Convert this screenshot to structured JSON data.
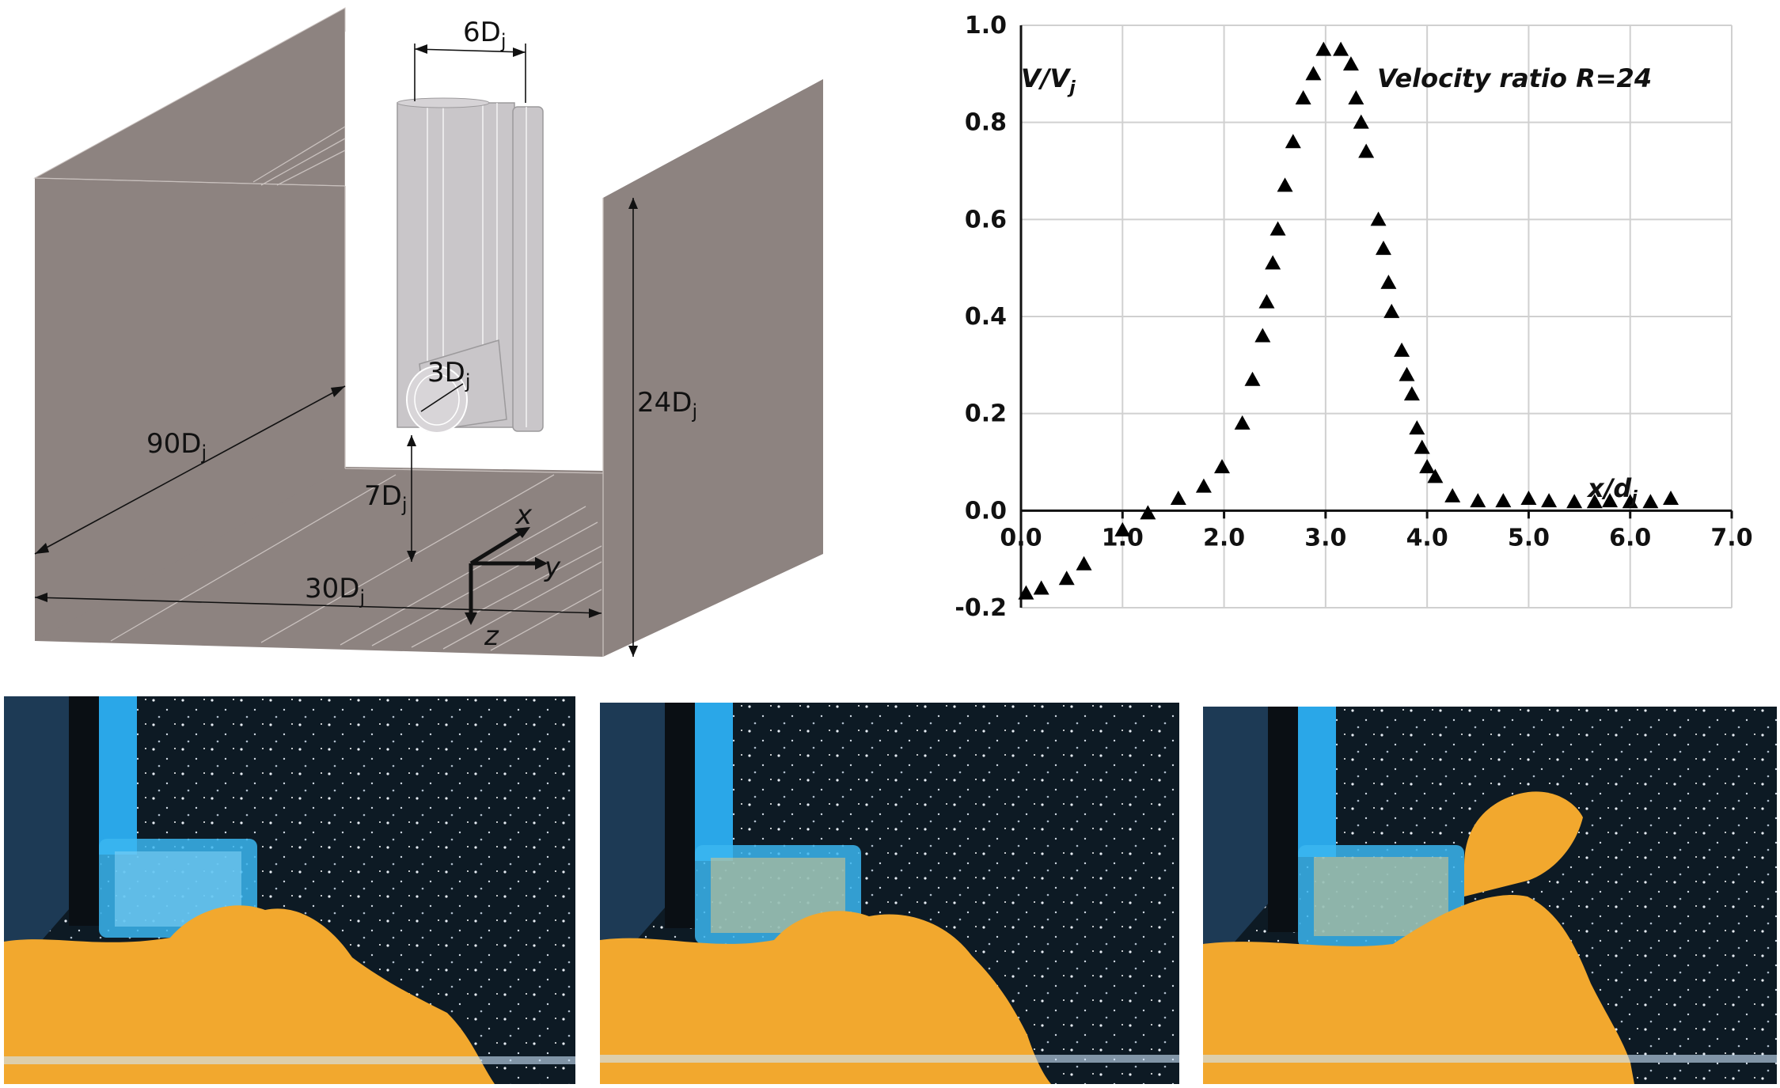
{
  "schematic": {
    "dim_labels": {
      "nozzle_spacing": "6D",
      "nozzle_spacing_sub": "j",
      "nozzle_dia": "3D",
      "nozzle_dia_sub": "j",
      "channel_length": "90D",
      "channel_length_sub": "j",
      "height_above_floor": "7D",
      "height_above_floor_sub": "j",
      "channel_width": "30D",
      "channel_width_sub": "j",
      "channel_depth": "24D",
      "channel_depth_sub": "j"
    },
    "axes_labels": {
      "x": "x",
      "y": "y",
      "z": "z"
    },
    "colors": {
      "wall": "#8d8380",
      "wall_edge": "#c9c1be",
      "nozzle": "#c9c6c9"
    }
  },
  "chart": {
    "ylabel_main": "V/V",
    "ylabel_sub": "j",
    "xlabel_main": "x/d",
    "xlabel_sub": "j",
    "annotation": "Velocity ratio R=24"
  },
  "chart_data": {
    "type": "scatter",
    "xlim": [
      0.0,
      7.0
    ],
    "ylim": [
      -0.2,
      1.0
    ],
    "xticks": [
      "0.0",
      "1.0",
      "2.0",
      "3.0",
      "4.0",
      "5.0",
      "6.0",
      "7.0"
    ],
    "yticks": [
      "-0.2",
      "0.0",
      "0.2",
      "0.4",
      "0.6",
      "0.8",
      "1.0"
    ],
    "grid": true,
    "marker": "triangle",
    "points": [
      [
        0.05,
        -0.17
      ],
      [
        0.2,
        -0.16
      ],
      [
        0.45,
        -0.14
      ],
      [
        0.62,
        -0.11
      ],
      [
        1.0,
        -0.04
      ],
      [
        1.25,
        -0.005
      ],
      [
        1.55,
        0.025
      ],
      [
        1.8,
        0.05
      ],
      [
        1.98,
        0.09
      ],
      [
        2.18,
        0.18
      ],
      [
        2.28,
        0.27
      ],
      [
        2.38,
        0.36
      ],
      [
        2.42,
        0.43
      ],
      [
        2.48,
        0.51
      ],
      [
        2.53,
        0.58
      ],
      [
        2.6,
        0.67
      ],
      [
        2.68,
        0.76
      ],
      [
        2.78,
        0.85
      ],
      [
        2.88,
        0.9
      ],
      [
        2.98,
        0.95
      ],
      [
        3.15,
        0.95
      ],
      [
        3.25,
        0.92
      ],
      [
        3.3,
        0.85
      ],
      [
        3.35,
        0.8
      ],
      [
        3.4,
        0.74
      ],
      [
        3.52,
        0.6
      ],
      [
        3.57,
        0.54
      ],
      [
        3.62,
        0.47
      ],
      [
        3.65,
        0.41
      ],
      [
        3.75,
        0.33
      ],
      [
        3.8,
        0.28
      ],
      [
        3.85,
        0.24
      ],
      [
        3.9,
        0.17
      ],
      [
        3.95,
        0.13
      ],
      [
        4.0,
        0.09
      ],
      [
        4.08,
        0.07
      ],
      [
        4.25,
        0.03
      ],
      [
        4.5,
        0.02
      ],
      [
        4.75,
        0.02
      ],
      [
        5.0,
        0.025
      ],
      [
        5.2,
        0.02
      ],
      [
        5.45,
        0.018
      ],
      [
        5.65,
        0.018
      ],
      [
        5.8,
        0.02
      ],
      [
        6.0,
        0.018
      ],
      [
        6.2,
        0.018
      ],
      [
        6.4,
        0.025
      ]
    ]
  },
  "photos": [
    {
      "colors": {
        "bg": "#0d1a24",
        "nozzle": "#2aa7e8",
        "plume": "#f2a82e"
      }
    },
    {
      "colors": {
        "bg": "#0d1a24",
        "nozzle": "#2aa7e8",
        "plume": "#f2a82e"
      }
    },
    {
      "colors": {
        "bg": "#0d1a24",
        "nozzle": "#2aa7e8",
        "plume": "#f2a82e"
      }
    }
  ]
}
